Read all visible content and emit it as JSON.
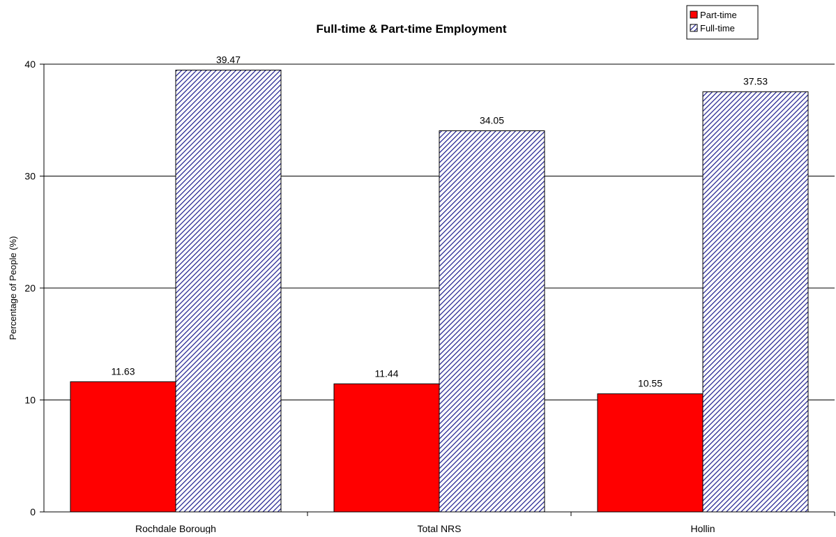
{
  "chart_data": {
    "type": "bar",
    "title": "Full-time & Part-time Employment",
    "xlabel": "",
    "ylabel": "Percentage of People (%)",
    "ylim": [
      0,
      40
    ],
    "yticks": [
      0,
      10,
      20,
      30,
      40
    ],
    "grid": true,
    "legend_position": "top-right",
    "categories": [
      "Rochdale Borough",
      "Total NRS",
      "Hollin"
    ],
    "series": [
      {
        "name": "Part-time",
        "values": [
          11.63,
          11.44,
          10.55
        ],
        "color": "#ff0000",
        "pattern": "solid"
      },
      {
        "name": "Full-time",
        "values": [
          39.47,
          34.05,
          37.53
        ],
        "color": "#1a1a8c",
        "pattern": "diagonal-hatch"
      }
    ],
    "data_labels": [
      [
        "11.63",
        "11.44",
        "10.55"
      ],
      [
        "39.47",
        "34.05",
        "37.53"
      ]
    ]
  }
}
